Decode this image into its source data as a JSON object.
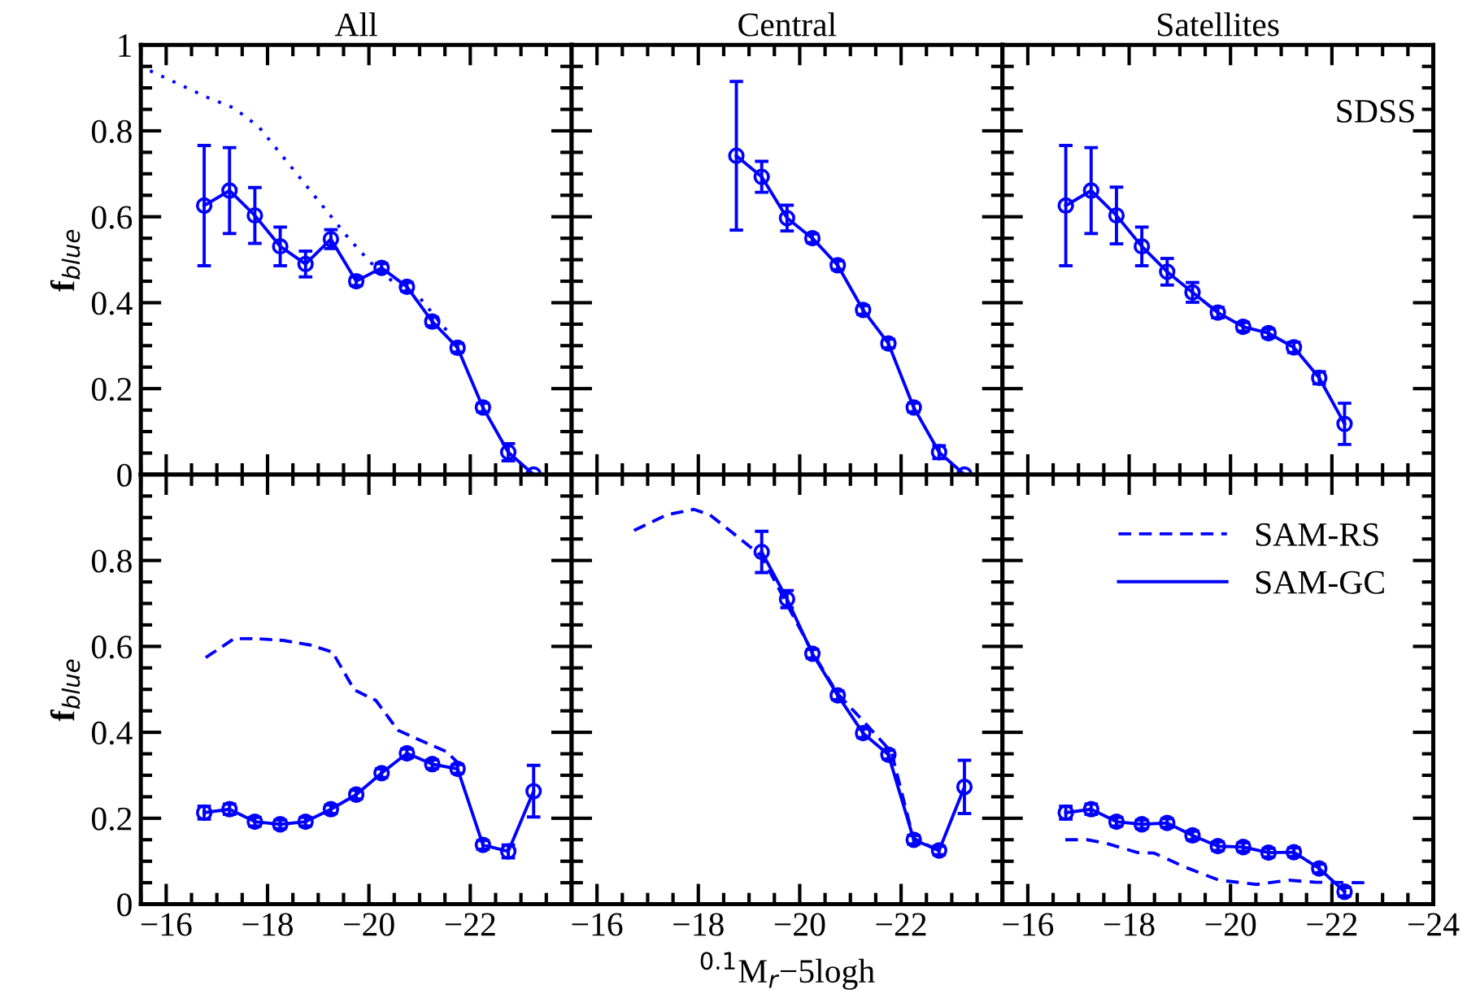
{
  "chart_data": [
    {
      "type": "line",
      "title": "All",
      "ylabel": "f$_{blue}$",
      "xlim": [
        -15.5,
        -24
      ],
      "ylim": [
        0,
        1
      ],
      "xticks": [
        -16,
        -18,
        -20,
        -22,
        -24
      ],
      "yticks": [
        0,
        0.2,
        0.4,
        0.6,
        0.8,
        1
      ],
      "tick_labels": "y",
      "series": [
        {
          "color": "#0000ff",
          "marker": "circle",
          "line_style": "solid",
          "x": [
            -16.75,
            -17.25,
            -17.75,
            -18.25,
            -18.75,
            -19.25,
            -19.75,
            -20.25,
            -20.75,
            -21.25,
            -21.75,
            -22.25,
            -22.75,
            -23.25
          ],
          "values": [
            0.626,
            0.661,
            0.603,
            0.531,
            0.49,
            0.548,
            0.45,
            0.481,
            0.437,
            0.356,
            0.295,
            0.156,
            0.052,
            0
          ],
          "errors": [
            0.14,
            0.1,
            0.065,
            0.045,
            0.03,
            0.022,
            0.01,
            0.01,
            0.01,
            0.01,
            0.01,
            0.01,
            0.02,
            null
          ]
        },
        {
          "color": "#0000ff",
          "marker": "none",
          "line_style": "dotted",
          "x": [
            -15.68,
            -16.81,
            -17.34,
            -17.83,
            -18.31,
            -18.74,
            -19.17,
            -19.6,
            -20.03,
            -20.46,
            -21.0,
            -21.53
          ],
          "values": [
            0.94,
            0.878,
            0.853,
            0.809,
            0.739,
            0.676,
            0.613,
            0.55,
            0.494,
            0.45,
            0.412,
            0.336
          ]
        }
      ]
    },
    {
      "type": "line",
      "title": "Central",
      "xlim": [
        -15.5,
        -24
      ],
      "ylim": [
        0,
        1
      ],
      "xticks": [
        -16,
        -18,
        -20,
        -22,
        -24
      ],
      "yticks": [
        0,
        0.2,
        0.4,
        0.6,
        0.8,
        1
      ],
      "tick_labels": false,
      "series": [
        {
          "color": "#0000ff",
          "marker": "circle",
          "line_style": "solid",
          "x": [
            -18.75,
            -19.25,
            -19.75,
            -20.25,
            -20.75,
            -21.25,
            -21.75,
            -22.25,
            -22.75,
            -23.25
          ],
          "values": [
            0.742,
            0.693,
            0.597,
            0.55,
            0.487,
            0.383,
            0.305,
            0.156,
            0.052,
            0
          ],
          "errors": [
            0.173,
            0.036,
            0.03,
            0.01,
            0.01,
            0.01,
            0.01,
            0.01,
            0.015,
            null
          ]
        }
      ]
    },
    {
      "type": "line",
      "title": "Satellites",
      "xlim": [
        -15.5,
        -24
      ],
      "ylim": [
        0,
        1
      ],
      "xticks": [
        -16,
        -18,
        -20,
        -22,
        -24
      ],
      "yticks": [
        0,
        0.2,
        0.4,
        0.6,
        0.8,
        1
      ],
      "tick_labels": false,
      "annotations": [
        "SDSS"
      ],
      "series": [
        {
          "color": "#0000ff",
          "marker": "circle",
          "line_style": "solid",
          "x": [
            -16.75,
            -17.25,
            -17.75,
            -18.25,
            -18.75,
            -19.25,
            -19.75,
            -20.25,
            -20.75,
            -21.25,
            -21.75,
            -22.25
          ],
          "values": [
            0.626,
            0.661,
            0.603,
            0.531,
            0.472,
            0.424,
            0.377,
            0.344,
            0.329,
            0.296,
            0.225,
            0.118
          ],
          "errors": [
            0.14,
            0.1,
            0.066,
            0.045,
            0.031,
            0.023,
            0.012,
            0.01,
            0.01,
            0.012,
            0.014,
            0.048
          ]
        }
      ]
    },
    {
      "type": "line",
      "ylabel": "f$_{blue}$",
      "xlim": [
        -15.5,
        -24
      ],
      "ylim": [
        0,
        1
      ],
      "xticks": [
        -16,
        -18,
        -20,
        -22,
        {
          "value": -24,
          "label": null
        }
      ],
      "yticks": [
        0,
        0.2,
        0.4,
        0.6,
        0.8,
        {
          "value": 1,
          "label": null
        }
      ],
      "series": [
        {
          "color": "#0000ff",
          "marker": "circle",
          "line_style": "solid",
          "x": [
            -16.75,
            -17.25,
            -17.75,
            -18.25,
            -18.75,
            -19.25,
            -19.75,
            -20.25,
            -20.75,
            -21.25,
            -21.75,
            -22.25,
            -22.75,
            -23.25
          ],
          "values": [
            0.213,
            0.221,
            0.192,
            0.186,
            0.192,
            0.221,
            0.255,
            0.305,
            0.351,
            0.326,
            0.315,
            0.138,
            0.123,
            0.263
          ],
          "errors": [
            0.015,
            0.012,
            0.01,
            0.01,
            0.01,
            0.01,
            0.01,
            0.01,
            0.01,
            0.01,
            0.01,
            0.01,
            0.015,
            0.06
          ]
        },
        {
          "color": "#0000ff",
          "marker": "none",
          "line_style": "dashed",
          "x": [
            -16.78,
            -17.34,
            -17.77,
            -18.31,
            -18.85,
            -19.28,
            -19.71,
            -20.14,
            -20.57,
            -21.1,
            -21.53,
            -21.8
          ],
          "values": [
            0.574,
            0.618,
            0.618,
            0.614,
            0.603,
            0.587,
            0.499,
            0.474,
            0.405,
            0.377,
            0.355,
            0.324
          ]
        }
      ]
    },
    {
      "type": "line",
      "xlabel": "$^{0.1}$M$_{r}$−5logh",
      "xlim": [
        -15.5,
        -24
      ],
      "ylim": [
        0,
        1
      ],
      "xticks": [
        -16,
        -18,
        -20,
        -22,
        {
          "value": -24,
          "label": null
        }
      ],
      "yticks": [
        0,
        0.2,
        0.4,
        0.6,
        0.8,
        1
      ],
      "tick_labels": "x",
      "series": [
        {
          "color": "#0000ff",
          "marker": "circle",
          "line_style": "solid",
          "x": [
            -19.25,
            -19.75,
            -20.25,
            -20.75,
            -21.25,
            -21.75,
            -22.25,
            -22.75,
            -23.25
          ],
          "values": [
            0.82,
            0.71,
            0.583,
            0.486,
            0.398,
            0.348,
            0.15,
            0.125,
            0.273
          ],
          "errors": [
            0.048,
            0.02,
            0.01,
            0.01,
            0.01,
            0.01,
            0.01,
            0.01,
            0.062
          ]
        },
        {
          "color": "#0000ff",
          "marker": "none",
          "line_style": "dashed",
          "x": [
            -16.73,
            -17.37,
            -17.91,
            -18.23,
            -18.66,
            -19.25,
            -19.78,
            -20.26,
            -20.74,
            -21.28,
            -21.81,
            -22.24,
            -22.72
          ],
          "values": [
            0.87,
            0.906,
            0.919,
            0.906,
            0.866,
            0.81,
            0.691,
            0.585,
            0.491,
            0.423,
            0.354,
            0.154,
            0.126
          ]
        }
      ]
    },
    {
      "type": "line",
      "xlim": [
        -15.5,
        -24
      ],
      "ylim": [
        0,
        1
      ],
      "xticks": [
        -16,
        -18,
        -20,
        -22,
        -24
      ],
      "yticks": [
        0,
        0.2,
        0.4,
        0.6,
        0.8,
        1
      ],
      "tick_labels": "x",
      "legend": "top right",
      "series": [
        {
          "name": "SAM-RS",
          "color": "#0000ff",
          "marker": "none",
          "line_style": "dashed",
          "x": [
            -16.74,
            -17.17,
            -17.54,
            -18.17,
            -18.49,
            -19.13,
            -19.77,
            -20.51,
            -21.15,
            -21.68,
            -22.64
          ],
          "values": [
            0.15,
            0.15,
            0.142,
            0.12,
            0.119,
            0.085,
            0.056,
            0.046,
            0.056,
            0.051,
            0.05
          ]
        },
        {
          "name": "SAM-GC",
          "color": "#0000ff",
          "marker": "circle",
          "line_style": "solid",
          "x": [
            -16.75,
            -17.25,
            -17.75,
            -18.25,
            -18.75,
            -19.25,
            -19.75,
            -20.25,
            -20.75,
            -21.25,
            -21.75,
            -22.25
          ],
          "values": [
            0.213,
            0.221,
            0.192,
            0.186,
            0.189,
            0.16,
            0.135,
            0.133,
            0.12,
            0.121,
            0.083,
            0.029
          ],
          "errors": [
            0.015,
            0.012,
            0.01,
            0.01,
            0.01,
            0.01,
            0.01,
            0.01,
            0.01,
            0.01,
            0.01,
            0.01
          ]
        }
      ]
    }
  ]
}
